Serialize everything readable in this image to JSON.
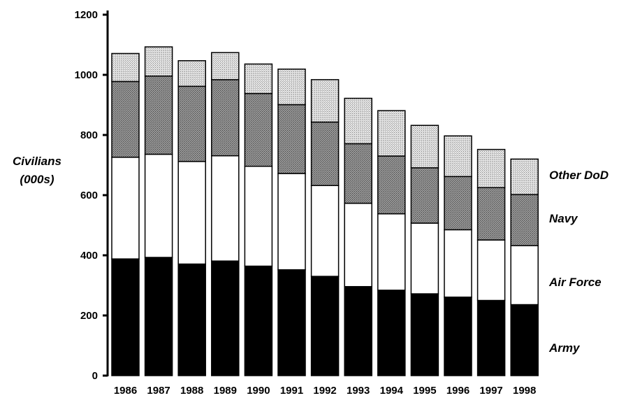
{
  "chart_data": {
    "type": "bar",
    "stacked": true,
    "title": "",
    "xlabel": "",
    "ylabel": "Civilians\n(000s)",
    "ylim": [
      0,
      1200
    ],
    "yticks": [
      0,
      200,
      400,
      600,
      800,
      1000,
      1200
    ],
    "categories": [
      "1986",
      "1987",
      "1988",
      "1989",
      "1990",
      "1991",
      "1992",
      "1993",
      "1994",
      "1995",
      "1996",
      "1997",
      "1998"
    ],
    "series": [
      {
        "name": "Army",
        "color": "#000000",
        "values": [
          388,
          393,
          371,
          381,
          364,
          352,
          330,
          296,
          284,
          272,
          261,
          250,
          236
        ]
      },
      {
        "name": "Air Force",
        "color": "#ffffff",
        "values": [
          338,
          343,
          341,
          350,
          332,
          320,
          302,
          277,
          254,
          235,
          224,
          201,
          196
        ]
      },
      {
        "name": "Navy",
        "color": "#8c8c8c",
        "values": [
          252,
          260,
          250,
          253,
          242,
          229,
          211,
          198,
          192,
          184,
          177,
          174,
          170
        ]
      },
      {
        "name": "Other DoD",
        "color": "#d6d6d6",
        "values": [
          93,
          97,
          85,
          90,
          98,
          118,
          141,
          151,
          151,
          141,
          135,
          127,
          118
        ]
      }
    ],
    "legend_position": "right",
    "grid": false
  }
}
